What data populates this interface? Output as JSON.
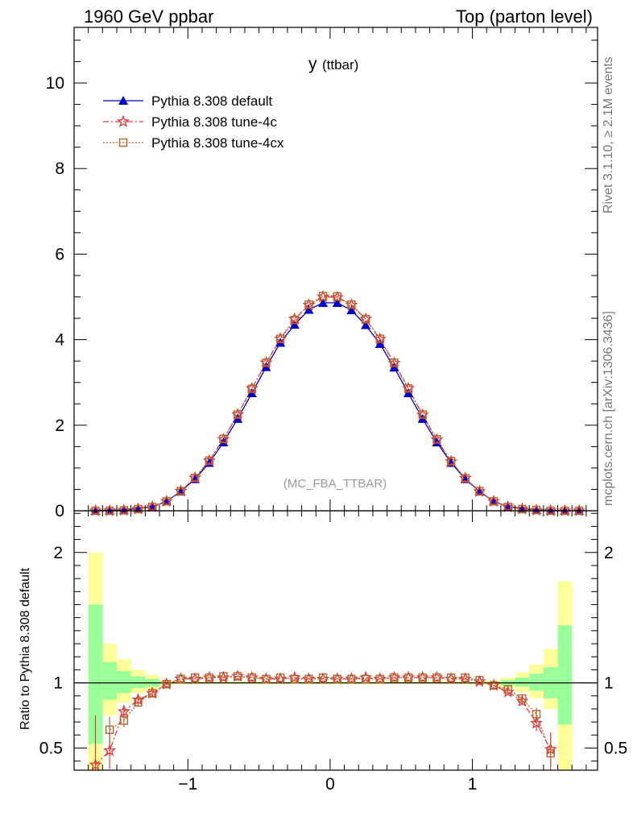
{
  "header": {
    "left": "1960 GeV ppbar",
    "right": "Top (parton level)"
  },
  "side_labels": {
    "rivet": "Rivet 3.1.10, ≥ 2.1M events",
    "mcplots": "mcplots.cern.ch [arXiv:1306.3436]"
  },
  "colors": {
    "default": "#0000cc",
    "tune4c": "#e03a3a",
    "tune4cx": "#b5652b",
    "band_green": "#99ff99",
    "band_yellow": "#ffff99"
  },
  "chart_data": [
    {
      "type": "line",
      "title": "y (ttbar)",
      "title_main": "y",
      "title_sub": "(ttbar)",
      "annotation": "(MC_FBA_TTBAR)",
      "xlim": [
        -1.8,
        1.88
      ],
      "ylim": [
        0,
        11.3
      ],
      "yticks": [
        0,
        2,
        4,
        6,
        8,
        10
      ],
      "tick_labels": [
        "0",
        "2",
        "4",
        "6",
        "8",
        "10"
      ],
      "x": [
        -1.65,
        -1.55,
        -1.45,
        -1.35,
        -1.25,
        -1.15,
        -1.05,
        -0.95,
        -0.85,
        -0.75,
        -0.65,
        -0.55,
        -0.45,
        -0.35,
        -0.25,
        -0.15,
        -0.05,
        0.05,
        0.15,
        0.25,
        0.35,
        0.45,
        0.55,
        0.65,
        0.75,
        0.85,
        0.95,
        1.05,
        1.15,
        1.25,
        1.35,
        1.45,
        1.55,
        1.65,
        1.75
      ],
      "series": [
        {
          "name": "Pythia 8.308 default",
          "marker": "triangle",
          "values": [
            0.0,
            0.01,
            0.02,
            0.05,
            0.1,
            0.22,
            0.45,
            0.74,
            1.12,
            1.6,
            2.15,
            2.75,
            3.36,
            3.93,
            4.35,
            4.7,
            4.86,
            4.86,
            4.69,
            4.34,
            3.9,
            3.35,
            2.75,
            2.15,
            1.6,
            1.12,
            0.74,
            0.45,
            0.22,
            0.1,
            0.05,
            0.02,
            0.01,
            0.0,
            0.0
          ]
        },
        {
          "name": "Pythia 8.308 tune-4c",
          "marker": "star",
          "values": [
            0.0,
            0.0,
            0.01,
            0.04,
            0.09,
            0.22,
            0.46,
            0.77,
            1.17,
            1.67,
            2.25,
            2.86,
            3.46,
            4.02,
            4.48,
            4.81,
            5.0,
            4.99,
            4.81,
            4.48,
            4.01,
            3.45,
            2.86,
            2.24,
            1.66,
            1.15,
            0.76,
            0.45,
            0.22,
            0.09,
            0.04,
            0.01,
            0.0,
            0.0,
            0.0
          ]
        },
        {
          "name": "Pythia 8.308 tune-4cx",
          "marker": "square",
          "values": [
            0.0,
            0.0,
            0.01,
            0.04,
            0.09,
            0.22,
            0.46,
            0.77,
            1.17,
            1.68,
            2.25,
            2.85,
            3.46,
            4.02,
            4.46,
            4.82,
            5.02,
            5.01,
            4.82,
            4.48,
            4.02,
            3.46,
            2.86,
            2.25,
            1.67,
            1.16,
            0.76,
            0.46,
            0.22,
            0.09,
            0.04,
            0.02,
            0.0,
            0.0,
            0.0
          ]
        }
      ],
      "legend_position": "top-left"
    },
    {
      "type": "line",
      "ylabel": "Ratio to Pythia 8.308 default",
      "xlim": [
        -1.8,
        1.88
      ],
      "ylim": [
        0.33,
        2.32
      ],
      "yticks": [
        0.5,
        1,
        2
      ],
      "tick_labels": [
        "0.5",
        "1",
        "2"
      ],
      "xticks": [
        -1,
        0,
        1
      ],
      "xtick_labels": [
        "−1",
        "0",
        "1"
      ],
      "reference": 1,
      "bands": {
        "bins": [
          [
            -1.7,
            -1.6
          ],
          [
            -1.6,
            -1.5
          ],
          [
            -1.5,
            -1.4
          ],
          [
            -1.4,
            -1.3
          ],
          [
            -1.3,
            -1.2
          ],
          [
            -1.2,
            -1.1
          ],
          [
            -1.1,
            1.1
          ],
          [
            1.1,
            1.2
          ],
          [
            1.2,
            1.3
          ],
          [
            1.3,
            1.4
          ],
          [
            1.4,
            1.5
          ],
          [
            1.5,
            1.6
          ],
          [
            1.6,
            1.7
          ]
        ],
        "inner": [
          [
            0.53,
            1.6
          ],
          [
            0.87,
            1.16
          ],
          [
            0.92,
            1.09
          ],
          [
            0.96,
            1.05
          ],
          [
            0.97,
            1.03
          ],
          [
            0.99,
            1.01
          ],
          [
            0.995,
            1.005
          ],
          [
            0.99,
            1.01
          ],
          [
            0.98,
            1.02
          ],
          [
            0.97,
            1.04
          ],
          [
            0.94,
            1.07
          ],
          [
            0.88,
            1.12
          ],
          [
            0.68,
            1.44
          ]
        ],
        "outer": [
          [
            0.33,
            2.0
          ],
          [
            0.75,
            1.3
          ],
          [
            0.85,
            1.18
          ],
          [
            0.92,
            1.1
          ],
          [
            0.95,
            1.06
          ],
          [
            0.98,
            1.02
          ],
          [
            0.99,
            1.01
          ],
          [
            0.98,
            1.02
          ],
          [
            0.96,
            1.04
          ],
          [
            0.93,
            1.08
          ],
          [
            0.88,
            1.14
          ],
          [
            0.8,
            1.26
          ],
          [
            0.33,
            1.78
          ]
        ]
      },
      "x": [
        -1.65,
        -1.55,
        -1.45,
        -1.35,
        -1.25,
        -1.15,
        -1.05,
        -0.95,
        -0.85,
        -0.75,
        -0.65,
        -0.55,
        -0.45,
        -0.35,
        -0.25,
        -0.15,
        -0.05,
        0.05,
        0.15,
        0.25,
        0.35,
        0.45,
        0.55,
        0.65,
        0.75,
        0.85,
        0.95,
        1.05,
        1.15,
        1.25,
        1.35,
        1.45,
        1.55,
        1.65
      ],
      "series": [
        {
          "name": "Pythia 8.308 tune-4c",
          "marker": "star",
          "values": [
            0.37,
            0.48,
            0.78,
            0.87,
            0.92,
            0.99,
            1.03,
            1.03,
            1.04,
            1.04,
            1.05,
            1.04,
            1.03,
            1.03,
            1.04,
            1.03,
            1.03,
            1.03,
            1.03,
            1.04,
            1.03,
            1.04,
            1.04,
            1.04,
            1.04,
            1.03,
            1.03,
            1.01,
            0.98,
            0.93,
            0.86,
            0.69,
            0.49,
            null
          ],
          "errors": [
            0.38,
            0.14,
            0.05,
            0.03,
            0.02,
            0.01,
            0.01,
            0.01,
            0.01,
            0.01,
            0.01,
            0.01,
            0.01,
            0.01,
            0.01,
            0.01,
            0.01,
            0.01,
            0.01,
            0.01,
            0.01,
            0.01,
            0.01,
            0.01,
            0.01,
            0.01,
            0.01,
            0.01,
            0.01,
            0.02,
            0.03,
            0.06,
            0.13,
            null
          ]
        },
        {
          "name": "Pythia 8.308 tune-4cx",
          "marker": "square",
          "values": [
            null,
            0.64,
            0.71,
            0.85,
            0.92,
            0.99,
            1.03,
            1.04,
            1.04,
            1.05,
            1.05,
            1.04,
            1.03,
            1.04,
            1.03,
            1.03,
            1.04,
            1.03,
            1.03,
            1.03,
            1.03,
            1.04,
            1.04,
            1.04,
            1.04,
            1.04,
            1.04,
            1.02,
            0.98,
            0.95,
            0.88,
            0.76,
            0.46,
            null
          ],
          "errors": [
            null,
            0.1,
            0.05,
            0.03,
            0.02,
            0.01,
            0.01,
            0.01,
            0.01,
            0.01,
            0.01,
            0.01,
            0.01,
            0.01,
            0.01,
            0.01,
            0.01,
            0.01,
            0.01,
            0.01,
            0.01,
            0.01,
            0.01,
            0.01,
            0.01,
            0.01,
            0.01,
            0.01,
            0.01,
            0.02,
            0.03,
            0.05,
            0.13,
            null
          ]
        }
      ]
    }
  ]
}
